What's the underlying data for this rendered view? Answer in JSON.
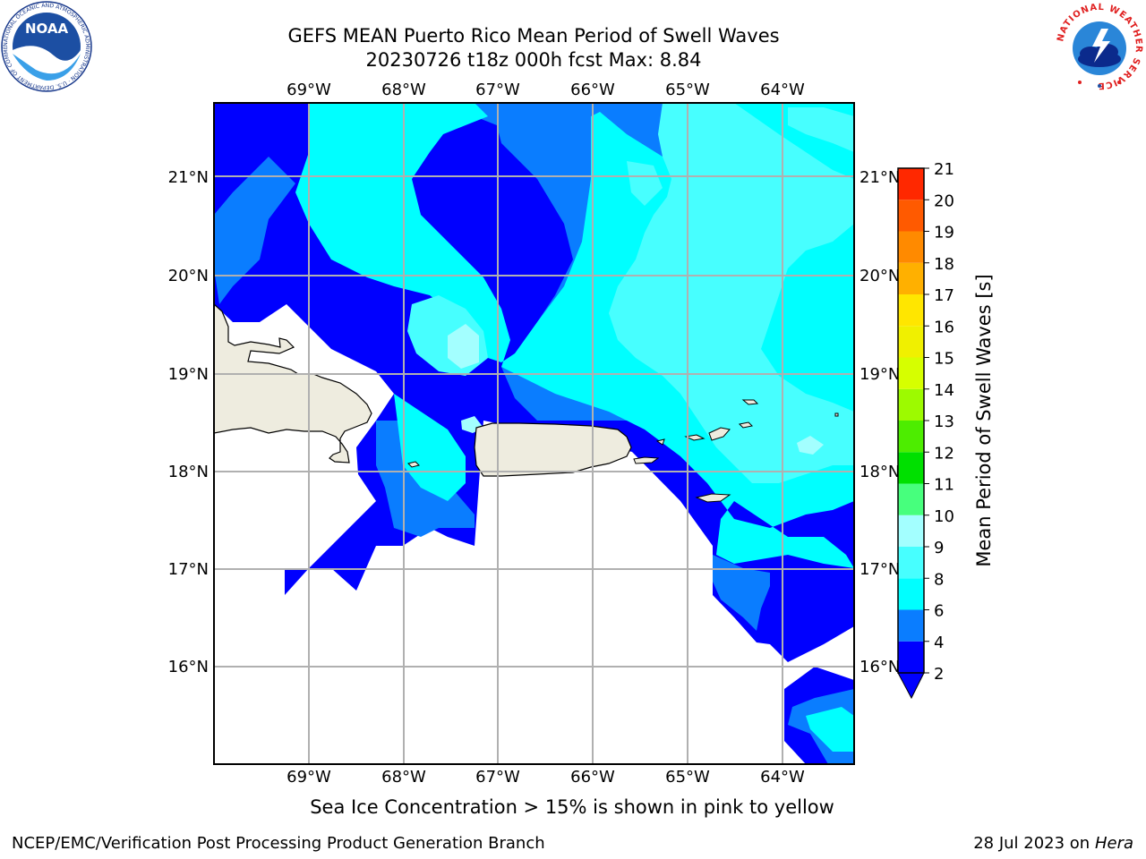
{
  "header": {
    "title_line1": "GEFS MEAN Puerto Rico Mean Period of Swell Waves",
    "title_line2": "20230726 t18z 000h fcst   Max: 8.84"
  },
  "map": {
    "lon_labels": [
      "69°W",
      "68°W",
      "67°W",
      "66°W",
      "65°W",
      "64°W"
    ],
    "lat_labels": [
      "21°N",
      "20°N",
      "19°N",
      "18°N",
      "17°N",
      "16°N"
    ],
    "land_color": "#eeecdf",
    "gridline_color": "#b0b0b0"
  },
  "colorbar": {
    "label": "Mean Period of Swell Waves [s]",
    "ticks": [
      "2",
      "4",
      "6",
      "8",
      "9",
      "10",
      "11",
      "12",
      "13",
      "14",
      "15",
      "16",
      "17",
      "18",
      "19",
      "20",
      "21"
    ],
    "colors": [
      "#0000ff",
      "#0a7dff",
      "#00ffff",
      "#47ffff",
      "#a3ffff",
      "#47ff7d",
      "#00e000",
      "#4ded00",
      "#9dfa00",
      "#d6ff00",
      "#f0f000",
      "#ffe600",
      "#ffb000",
      "#ff8a00",
      "#ff5a00",
      "#ff2800",
      "#ff0000"
    ],
    "under_color": "#0000ff"
  },
  "footer": {
    "note": "Sea Ice Concentration > 15% is shown in pink to yellow",
    "branch": "NCEP/EMC/Verification Post Processing Product Generation Branch",
    "date": "28 Jul 2023 on ",
    "host": "Hera"
  },
  "logos": {
    "noaa_text": "NOAA",
    "noaa_ring": "NATIONAL OCEANIC AND ATMOSPHERIC ADMINISTRATION · U.S. DEPARTMENT OF COMMERCE",
    "nws_ring": "NATIONAL WEATHER SERVICE"
  }
}
